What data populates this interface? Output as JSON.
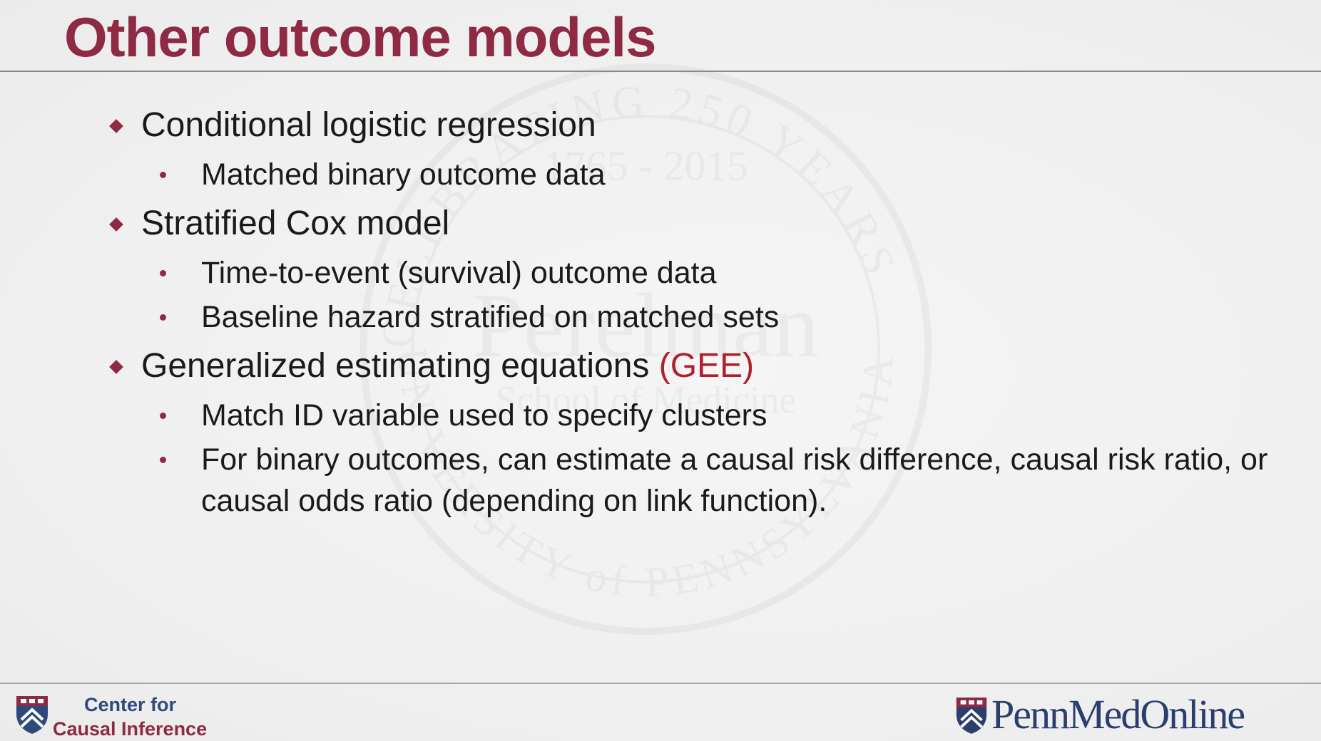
{
  "slide": {
    "title": "Other outcome models",
    "items": [
      {
        "text": "Conditional logistic regression",
        "subitems": [
          "Matched binary outcome data"
        ]
      },
      {
        "text": "Stratified Cox model",
        "subitems": [
          "Time-to-event (survival) outcome data",
          "Baseline hazard stratified on matched sets"
        ]
      },
      {
        "text": "Generalized estimating equations",
        "highlight": "(GEE)",
        "subitems": [
          "Match ID variable used to specify clusters",
          "For binary outcomes, can estimate a causal risk difference, causal risk ratio, or causal odds ratio (depending on link function)."
        ]
      }
    ]
  },
  "footer": {
    "left_logo": {
      "line1": "Center for",
      "line2": "Causal Inference",
      "icon": "penn-shield-icon"
    },
    "right_logo": {
      "text": "PennMedOnline",
      "icon": "penn-shield-icon"
    }
  },
  "watermark": {
    "icon": "university-seal-icon",
    "text_top": "CELEBRATING 250 YEARS",
    "years": "1765 - 2015",
    "name": "Perelman",
    "subname": "School of Medicine",
    "text_bottom": "UNIVERSITY of PENNSYLVANIA"
  },
  "colors": {
    "title": "#8e2a43",
    "bullet": "#8e2a43",
    "highlight": "#b01f2a",
    "text": "#1a1a1a",
    "logo_blue": "#2f4a7a",
    "background": "#f0f0f0"
  }
}
